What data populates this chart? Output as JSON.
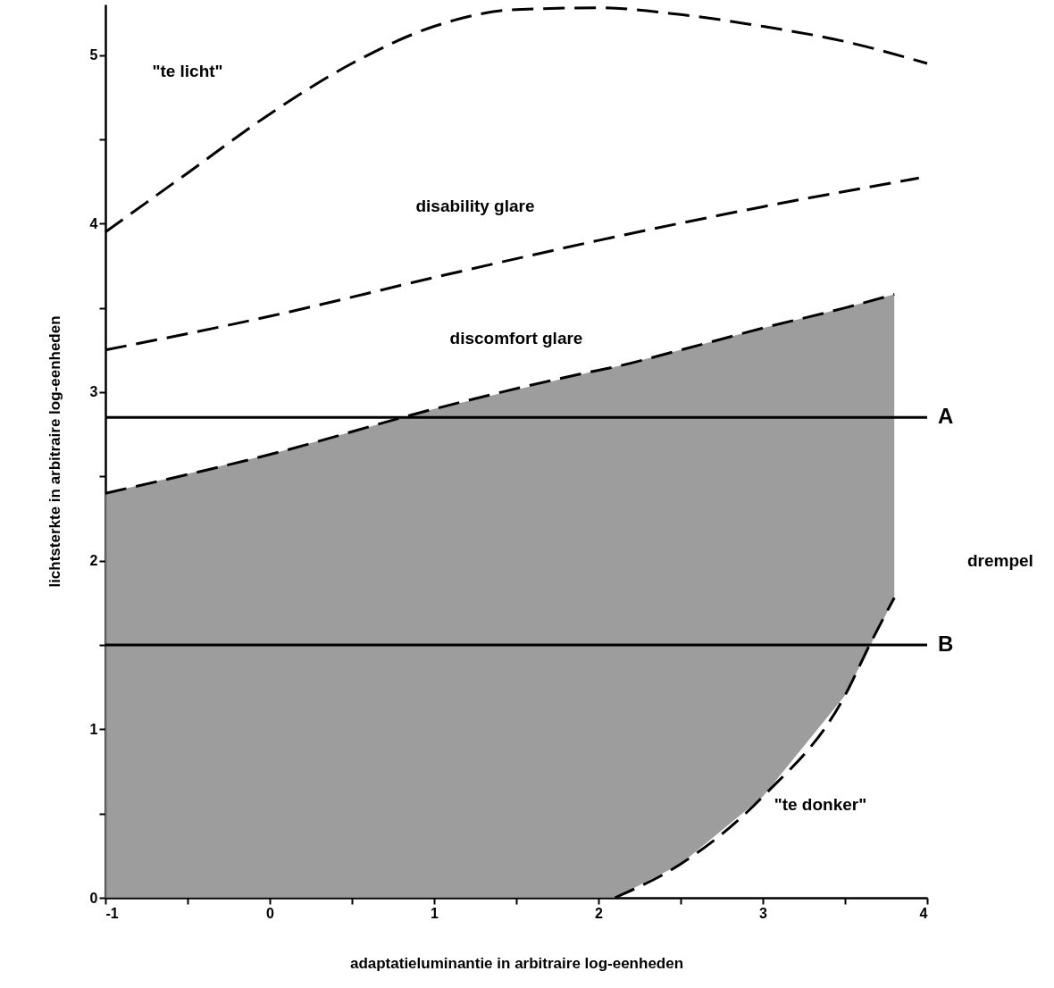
{
  "chart_data": {
    "type": "line",
    "xlabel": "adaptatieluminantie in arbitraire log-eenheden",
    "ylabel": "lichtsterkte in arbitraire log-eenheden",
    "xlim": [
      -1,
      4
    ],
    "ylim": [
      0,
      5.3
    ],
    "xticks": [
      -1,
      {
        "value": -0.5,
        "label": null
      },
      0,
      {
        "value": 0.5,
        "label": null
      },
      1,
      {
        "value": 1.5,
        "label": null
      },
      2,
      {
        "value": 2.5,
        "label": null
      },
      3,
      {
        "value": 3.5,
        "label": null
      },
      4
    ],
    "yticks": [
      0,
      {
        "value": 0.5,
        "label": null
      },
      1,
      {
        "value": 1.5,
        "label": null
      },
      2,
      {
        "value": 2.5,
        "label": null
      },
      3,
      {
        "value": 3.5,
        "label": null
      },
      4,
      {
        "value": 4.5,
        "label": null
      },
      5
    ],
    "series": [
      {
        "color": "#000000",
        "line_style": "dashed",
        "x": [
          -1,
          -0.5,
          0,
          0.5,
          1,
          1.5,
          2,
          2.5,
          3,
          3.5,
          4
        ],
        "values": [
          3.95,
          4.3,
          4.65,
          4.95,
          5.17,
          5.27,
          5.28,
          5.24,
          5.17,
          5.08,
          4.95
        ]
      },
      {
        "color": "#000000",
        "line_style": "dashed",
        "x": [
          -1,
          0,
          1,
          2,
          3,
          3.95
        ],
        "values": [
          3.25,
          3.45,
          3.68,
          3.9,
          4.1,
          4.27
        ]
      },
      {
        "color": "#000000",
        "line_style": "dashed",
        "x": [
          -1,
          0,
          1,
          2,
          2.1,
          2.5,
          3,
          3.5,
          3.8
        ],
        "values": [
          2.4,
          2.63,
          2.9,
          3.13,
          3.15,
          3.25,
          3.38,
          3.5,
          3.58
        ],
        "lower": [
          0,
          0,
          0,
          0,
          0,
          0.2,
          0.6,
          1.2,
          1.78
        ],
        "upper": [
          2.4,
          2.63,
          2.9,
          3.13,
          3.15,
          3.25,
          3.38,
          3.5,
          3.58
        ]
      },
      {
        "color": "#000000",
        "line_style": "dashed",
        "x": [
          2.1,
          2.5,
          3,
          3.5,
          3.65,
          3.8
        ],
        "values": [
          0,
          0.2,
          0.6,
          1.2,
          1.5,
          1.78
        ]
      }
    ],
    "ref_lines": [
      {
        "axis": "y",
        "value": 2.85,
        "label": "A"
      },
      {
        "axis": "y",
        "value": 1.5,
        "label": "B"
      }
    ],
    "annotations": [
      "\"te licht\"",
      "disability glare",
      "discomfort glare",
      "\"te donker\"",
      "drempel"
    ],
    "grid": false
  }
}
